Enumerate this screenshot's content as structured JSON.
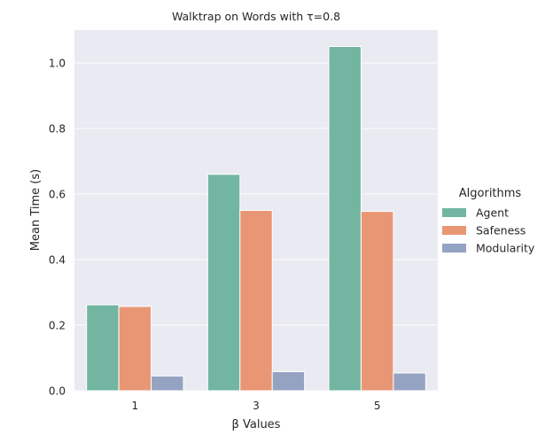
{
  "chart_data": {
    "type": "bar",
    "title": "Walktrap on Words with τ=0.8",
    "xlabel": "β Values",
    "ylabel": "Mean Time (s)",
    "categories": [
      "1",
      "3",
      "5"
    ],
    "ylim": [
      0,
      1.1
    ],
    "yticks": [
      0.0,
      0.2,
      0.4,
      0.6,
      0.8,
      1.0
    ],
    "ytick_labels": [
      "0.0",
      "0.2",
      "0.4",
      "0.6",
      "0.8",
      "1.0"
    ],
    "grid": true,
    "legend": {
      "title": "Algorithms",
      "placement": "right"
    },
    "series": [
      {
        "name": "Agent",
        "color": "#72b6a1",
        "values": [
          0.262,
          0.66,
          1.05
        ]
      },
      {
        "name": "Safeness",
        "color": "#e99675",
        "values": [
          0.257,
          0.55,
          0.547
        ]
      },
      {
        "name": "Modularity",
        "color": "#95a3c3",
        "values": [
          0.045,
          0.058,
          0.054
        ]
      }
    ]
  }
}
